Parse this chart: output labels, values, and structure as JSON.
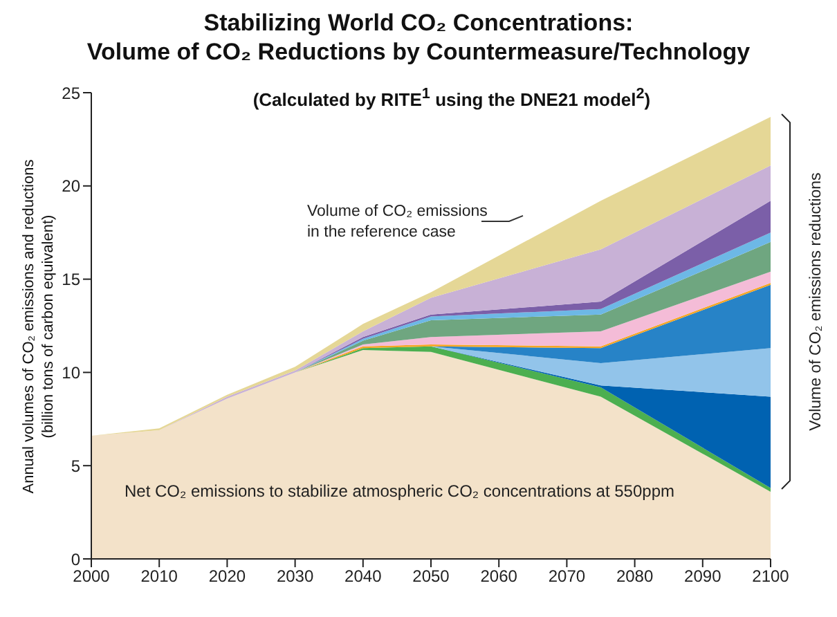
{
  "chart_data": {
    "type": "area",
    "stacked": true,
    "title": "Stabilizing World CO₂ Concentrations:\nVolume of CO₂ Reductions by Countermeasure/Technology",
    "subtitle": "(Calculated by RITE$^{1}$ using the DNE21 model$^{2}$)",
    "ylabel": "Annual volumes of CO₂ emissions and reductions\n(billion tons of carbon equivalent)",
    "annotations": [
      "Volume of CO₂ emissions\nin the reference case",
      "Net CO₂ emissions to stabilize atmospheric CO₂ concentrations at 550ppm",
      "Volume of CO₂ emissions reductions"
    ],
    "x": [
      2000,
      2010,
      2020,
      2030,
      2040,
      2050,
      2075,
      2100
    ],
    "series": [
      {
        "color": "#f3e2c9",
        "values": [
          6.6,
          6.9,
          8.6,
          10.0,
          11.2,
          11.1,
          8.7,
          3.6
        ]
      },
      {
        "color": "#4caf50",
        "values": [
          0,
          0,
          0,
          0,
          0.1,
          0.3,
          0.5,
          0.2
        ]
      },
      {
        "color": "#0062b1",
        "values": [
          0,
          0,
          0,
          0,
          0,
          0,
          0.1,
          4.9
        ]
      },
      {
        "color": "#92c4ea",
        "values": [
          0,
          0,
          0,
          0,
          0,
          0,
          1.2,
          2.6
        ]
      },
      {
        "color": "#2783c7",
        "values": [
          0,
          0,
          0,
          0,
          0,
          0,
          0.8,
          3.4
        ]
      },
      {
        "color": "#f5a623",
        "values": [
          0,
          0,
          0,
          0,
          0.1,
          0.1,
          0.1,
          0.1
        ]
      },
      {
        "color": "#f4bcd7",
        "values": [
          0,
          0,
          0,
          0,
          0.1,
          0.4,
          0.8,
          0.6
        ]
      },
      {
        "color": "#6fa680",
        "values": [
          0,
          0,
          0,
          0,
          0.2,
          0.9,
          0.9,
          1.6
        ]
      },
      {
        "color": "#6db8e6",
        "values": [
          0,
          0,
          0,
          0,
          0.1,
          0.2,
          0.3,
          0.5
        ]
      },
      {
        "color": "#7b5fa8",
        "values": [
          0,
          0,
          0,
          0,
          0.1,
          0.1,
          0.4,
          1.7
        ]
      },
      {
        "color": "#c8b1d6",
        "values": [
          0,
          0,
          0.1,
          0.1,
          0.3,
          0.9,
          2.8,
          1.9
        ]
      },
      {
        "color": "#e5d796",
        "values": [
          0,
          0.1,
          0.1,
          0.2,
          0.4,
          0.3,
          2.6,
          2.6
        ]
      }
    ],
    "xlim": [
      2000,
      2100
    ],
    "xticks": [
      2000,
      2010,
      2020,
      2030,
      2040,
      2050,
      2060,
      2070,
      2080,
      2090,
      2100
    ],
    "ylim": [
      0,
      25
    ],
    "yticks": [
      0,
      5,
      10,
      15,
      20,
      25
    ],
    "grid": false,
    "legend": false
  }
}
